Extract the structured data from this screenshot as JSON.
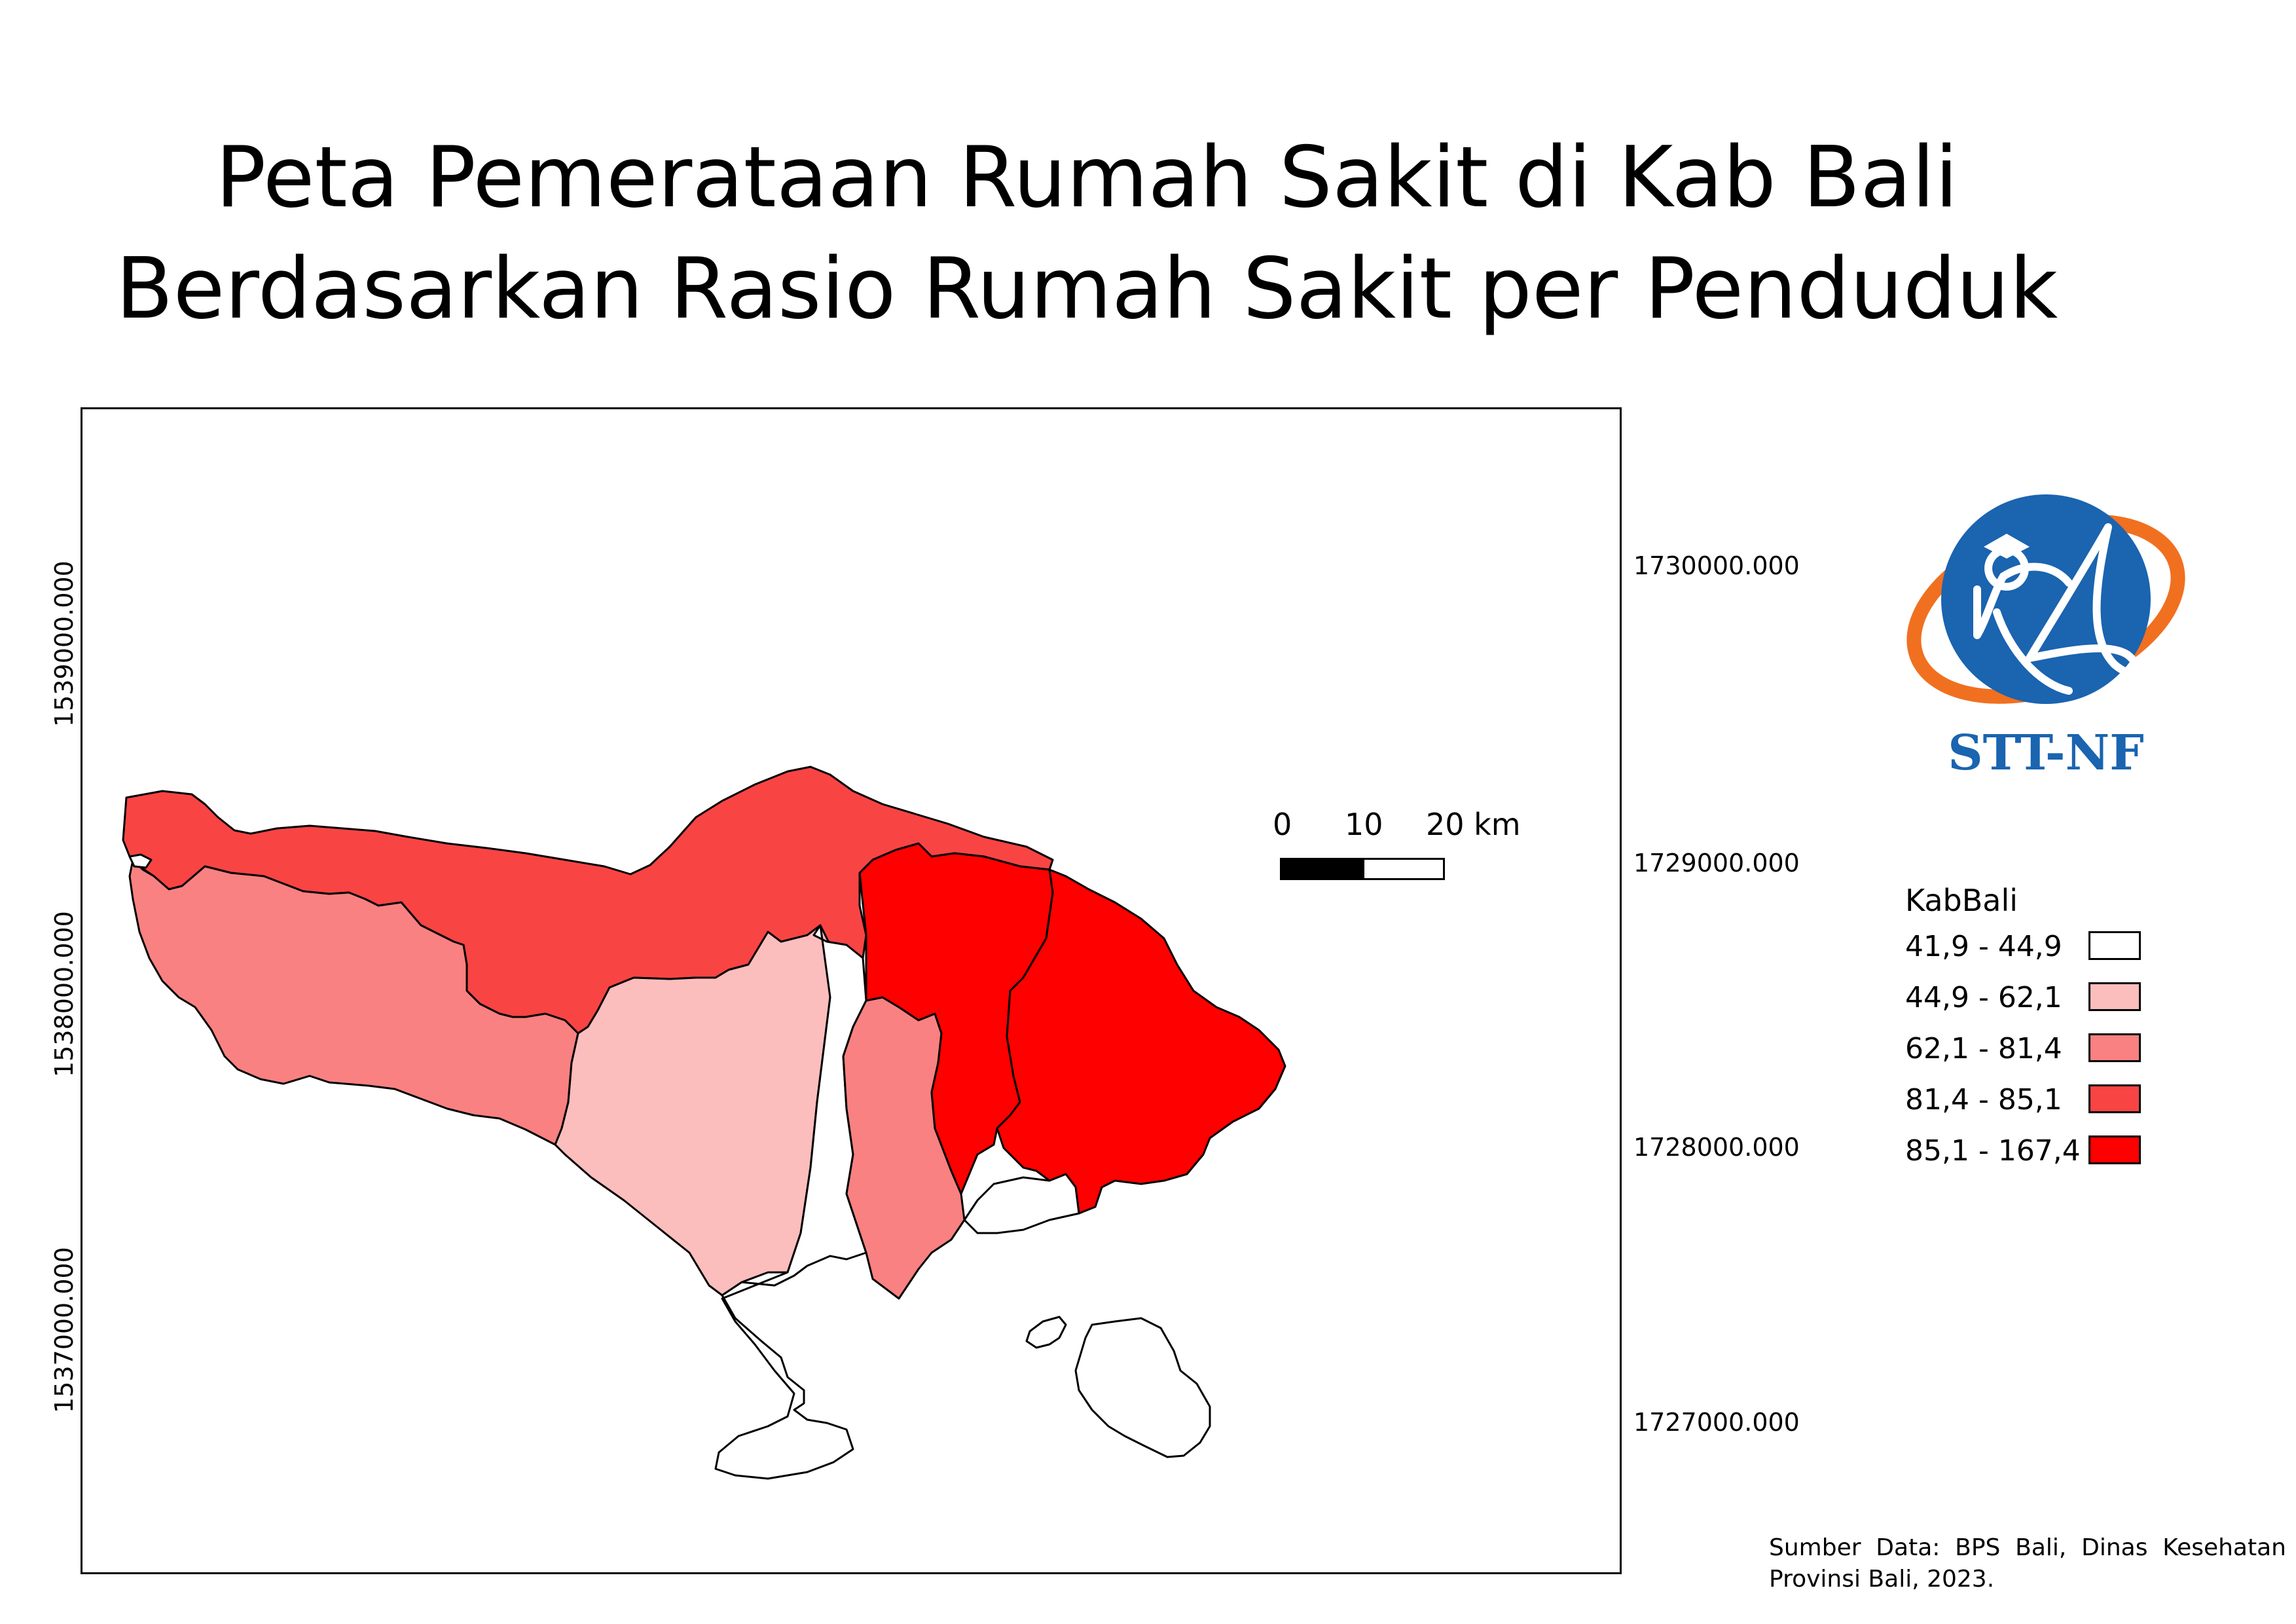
{
  "title": {
    "line1": "Peta Pemerataan Rumah Sakit di Kab Bali",
    "line2": "Berdasarkan Rasio Rumah Sakit per Penduduk"
  },
  "axes": {
    "left_labels": [
      "1539000.000",
      "1538000.000",
      "1537000.000"
    ],
    "right_labels": [
      "1730000.000",
      "1729000.000",
      "1728000.000",
      "1727000.000"
    ]
  },
  "scale": {
    "ticks": [
      "0",
      "10",
      "20 km"
    ]
  },
  "logo": {
    "text": "STT-NF",
    "colors": {
      "circle": "#1a64b0",
      "ring": "#f07020",
      "text": "#1a64b0"
    }
  },
  "legend": {
    "title": "KabBali",
    "items": [
      {
        "label": "41,9 - 44,9",
        "color": "#ffffff"
      },
      {
        "label": "44,9 - 62,1",
        "color": "#fcbdbd"
      },
      {
        "label": "62,1 - 81,4",
        "color": "#f98181"
      },
      {
        "label": "81,4 - 85,1",
        "color": "#f94444"
      },
      {
        "label": "85,1 - 167,4",
        "color": "#ff0000"
      }
    ]
  },
  "source": "Sumber Data: BPS Bali, Dinas Kesehatan Provinsi Bali, 2023."
}
